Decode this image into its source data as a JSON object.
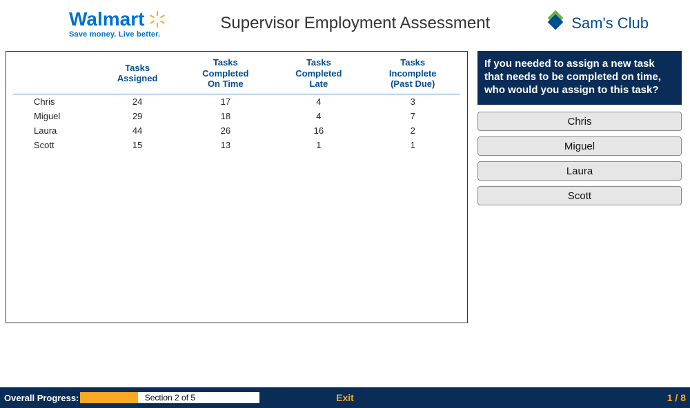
{
  "header": {
    "walmart_name": "Walmart",
    "walmart_tagline": "Save money. Live better.",
    "title": "Supervisor Employment Assessment",
    "sams_name": "Sam's Club"
  },
  "table": {
    "columns": [
      "",
      "Tasks\nAssigned",
      "Tasks\nCompleted\nOn Time",
      "Tasks\nCompleted\nLate",
      "Tasks\nIncomplete\n(Past Due)"
    ],
    "rows": [
      {
        "name": "Chris",
        "assigned": 24,
        "ontime": 17,
        "late": 4,
        "incomplete": 3
      },
      {
        "name": "Miguel",
        "assigned": 29,
        "ontime": 18,
        "late": 4,
        "incomplete": 7
      },
      {
        "name": "Laura",
        "assigned": 44,
        "ontime": 26,
        "late": 16,
        "incomplete": 2
      },
      {
        "name": "Scott",
        "assigned": 15,
        "ontime": 13,
        "late": 1,
        "incomplete": 1
      }
    ]
  },
  "question": {
    "text": "If you needed to assign a new task that needs to be completed on time, who would you assign to this task?",
    "options": [
      "Chris",
      "Miguel",
      "Laura",
      "Scott"
    ]
  },
  "footer": {
    "progress_label": "Overall Progress:",
    "section_text": "Section 2 of 5",
    "progress_pct": 32,
    "exit_label": "Exit",
    "page_counter": "1 / 8"
  },
  "colors": {
    "walmart_blue": "#0071ce",
    "dark_navy": "#0a2d57",
    "sams_blue": "#004c91",
    "sams_green": "#6cb33f",
    "spark_yellow": "#f9a825"
  }
}
